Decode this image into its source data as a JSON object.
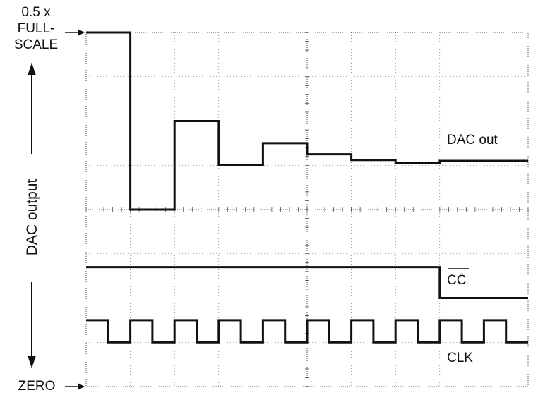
{
  "labels": {
    "top_marker_line1": "0.5 x",
    "top_marker_line2": "FULL-",
    "top_marker_line3": "SCALE",
    "bottom_marker": "ZERO",
    "y_axis": "DAC output",
    "dac_trace": "DAC out",
    "cc_trace": "CC",
    "clk_trace": "CLK"
  },
  "chart_data": {
    "type": "line",
    "title": "",
    "xlabel": "",
    "ylabel": "DAC output",
    "grid": true,
    "grid_divisions": {
      "x": 10,
      "y": 8
    },
    "xlim": [
      0,
      10
    ],
    "ylim": [
      0,
      8
    ],
    "series": [
      {
        "name": "DAC out",
        "step": true,
        "x": [
          0,
          1,
          2,
          3,
          4,
          5,
          6,
          7,
          8,
          9,
          10
        ],
        "y": [
          8.0,
          4.0,
          6.0,
          5.0,
          5.5,
          5.25,
          5.12,
          5.06,
          5.1,
          5.1,
          5.1
        ]
      },
      {
        "name": "CC",
        "overline": true,
        "step": true,
        "x": [
          0,
          8,
          10
        ],
        "y": [
          2.7,
          2.0,
          2.0
        ]
      },
      {
        "name": "CLK",
        "step": true,
        "x": [
          0,
          0.5,
          1,
          1.5,
          2,
          2.5,
          3,
          3.5,
          4,
          4.5,
          5,
          5.5,
          6,
          6.5,
          7,
          7.5,
          8,
          8.5,
          9,
          9.5,
          10
        ],
        "y": [
          1.5,
          1.0,
          1.5,
          1.0,
          1.5,
          1.0,
          1.5,
          1.0,
          1.5,
          1.0,
          1.5,
          1.0,
          1.5,
          1.0,
          1.5,
          1.0,
          1.5,
          1.0,
          1.5,
          1.0,
          1.0
        ]
      }
    ]
  }
}
